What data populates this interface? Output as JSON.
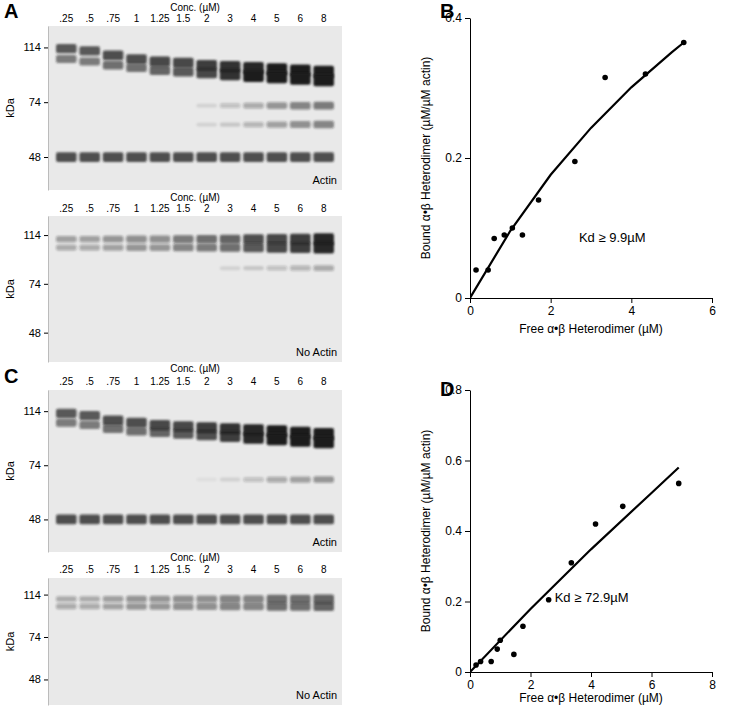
{
  "chart_data": [
    {
      "type": "gel",
      "panel": "A",
      "x_label": "Conc. (µM)",
      "y_label": "kDa",
      "annotation": "Actin",
      "categories": [
        ".25",
        ".5",
        ".75",
        "1",
        "1.25",
        "1.5",
        "2",
        "3",
        "4",
        "5",
        "6",
        "8"
      ],
      "log": "y",
      "ylim": [
        37,
        135
      ],
      "yticks": [
        114,
        74,
        48
      ],
      "color": "#1e1e1e",
      "bands": [
        {
          "kda": [
            113,
            111,
            107,
            104,
            102,
            101,
            99,
            98,
            97,
            96,
            95,
            94
          ],
          "values": [
            0.7,
            0.7,
            0.75,
            0.75,
            0.8,
            0.8,
            0.85,
            0.9,
            0.95,
            1,
            1,
            1
          ]
        },
        {
          "kda": [
            104,
            102,
            99,
            97,
            95,
            94,
            93,
            92,
            91,
            90,
            89,
            88
          ],
          "values": [
            0.55,
            0.55,
            0.6,
            0.6,
            0.65,
            0.7,
            0.8,
            0.9,
            1,
            1,
            1,
            1
          ]
        },
        {
          "kda": [
            72,
            72,
            72,
            72,
            72,
            72,
            72,
            72,
            72,
            72,
            72,
            72
          ],
          "values": [
            0,
            0,
            0,
            0,
            0,
            0,
            0.1,
            0.2,
            0.3,
            0.4,
            0.5,
            0.55
          ]
        },
        {
          "kda": [
            62,
            62,
            62,
            62,
            62,
            62,
            62,
            62,
            62,
            62,
            62,
            62
          ],
          "values": [
            0,
            0,
            0,
            0,
            0,
            0,
            0.1,
            0.15,
            0.25,
            0.35,
            0.45,
            0.5
          ]
        },
        {
          "kda": [
            48,
            48,
            48,
            48,
            48,
            48,
            48,
            48,
            48,
            48,
            48,
            48
          ],
          "values": [
            0.75,
            0.75,
            0.75,
            0.75,
            0.75,
            0.75,
            0.75,
            0.75,
            0.75,
            0.75,
            0.75,
            0.75
          ]
        }
      ]
    },
    {
      "type": "gel",
      "x_label": "Conc. (µM)",
      "y_label": "kDa",
      "annotation": "No Actin",
      "categories": [
        ".25",
        ".5",
        ".75",
        "1",
        "1.25",
        "1.5",
        "2",
        "3",
        "4",
        "5",
        "6",
        "8"
      ],
      "log": "y",
      "ylim": [
        37,
        135
      ],
      "yticks": [
        114,
        74,
        48
      ],
      "color": "#1e1e1e",
      "bands": [
        {
          "kda": [
            110,
            110,
            110,
            110,
            110,
            110,
            110,
            110,
            110,
            110,
            110,
            110
          ],
          "values": [
            0.35,
            0.35,
            0.4,
            0.45,
            0.45,
            0.55,
            0.6,
            0.65,
            0.75,
            0.8,
            0.85,
            0.95
          ]
        },
        {
          "kda": [
            102,
            102,
            102,
            102,
            102,
            102,
            102,
            102,
            102,
            102,
            102,
            102
          ],
          "values": [
            0.3,
            0.3,
            0.35,
            0.4,
            0.4,
            0.5,
            0.55,
            0.6,
            0.7,
            0.8,
            0.85,
            0.95
          ]
        },
        {
          "kda": [
            85,
            85,
            85,
            85,
            85,
            85,
            85,
            85,
            85,
            85,
            85,
            85
          ],
          "values": [
            0,
            0,
            0,
            0,
            0,
            0,
            0,
            0.1,
            0.15,
            0.2,
            0.25,
            0.3
          ]
        }
      ]
    },
    {
      "type": "scatter",
      "panel": "B",
      "x_label": "Free α•β Heterodimer (µM)",
      "y_label": "Bound α•β Heterodimer (µM/µM actin)",
      "annotation": "Kd ≥ 9.9µM",
      "xlim": [
        0,
        6
      ],
      "xticks": [
        0,
        2,
        4,
        6
      ],
      "ylim": [
        0,
        0.4
      ],
      "yticks": [
        0,
        0.2,
        0.4
      ],
      "series": [
        {
          "type": "scatter",
          "marker": "circle",
          "color": "#000000",
          "x": [
            0.15,
            0.45,
            0.6,
            0.85,
            1.05,
            1.3,
            1.7,
            2.6,
            3.35,
            4.35,
            5.3
          ],
          "values": [
            0.04,
            0.04,
            0.085,
            0.09,
            0.1,
            0.09,
            0.14,
            0.195,
            0.315,
            0.32,
            0.365
          ]
        },
        {
          "type": "line",
          "line_style": "solid",
          "color": "#000000",
          "x": [
            0,
            1,
            2,
            3,
            4,
            5,
            5.3
          ],
          "values": [
            0,
            0.096,
            0.176,
            0.243,
            0.301,
            0.351,
            0.365
          ]
        }
      ]
    },
    {
      "type": "gel",
      "panel": "C",
      "x_label": "Conc. (µM)",
      "y_label": "kDa",
      "annotation": "Actin",
      "categories": [
        ".25",
        ".5",
        ".75",
        "1",
        "1.25",
        "1.5",
        "2",
        "3",
        "4",
        "5",
        "6",
        "8"
      ],
      "log": "y",
      "ylim": [
        37,
        135
      ],
      "yticks": [
        114,
        74,
        48
      ],
      "color": "#1e1e1e",
      "bands": [
        {
          "kda": [
            112,
            110,
            106,
            104,
            102,
            101,
            100,
            99,
            98,
            97,
            96,
            95
          ],
          "values": [
            0.7,
            0.7,
            0.75,
            0.75,
            0.8,
            0.8,
            0.85,
            0.9,
            0.95,
            1,
            1,
            1
          ]
        },
        {
          "kda": [
            104,
            102,
            99,
            97,
            96,
            95,
            94,
            93,
            92,
            91,
            90,
            89
          ],
          "values": [
            0.55,
            0.55,
            0.6,
            0.6,
            0.65,
            0.7,
            0.75,
            0.85,
            0.95,
            1,
            1,
            1
          ]
        },
        {
          "kda": [
            66,
            66,
            66,
            66,
            66,
            66,
            66,
            66,
            66,
            66,
            66,
            66
          ],
          "values": [
            0,
            0,
            0,
            0,
            0,
            0,
            0.05,
            0.1,
            0.2,
            0.3,
            0.35,
            0.4
          ]
        },
        {
          "kda": [
            48,
            48,
            48,
            48,
            48,
            48,
            48,
            48,
            48,
            48,
            48,
            48
          ],
          "values": [
            0.75,
            0.75,
            0.75,
            0.75,
            0.75,
            0.75,
            0.75,
            0.75,
            0.75,
            0.75,
            0.75,
            0.75
          ]
        }
      ]
    },
    {
      "type": "gel",
      "x_label": "Conc. (µM)",
      "y_label": "kDa",
      "annotation": "No Actin",
      "categories": [
        ".25",
        ".5",
        ".75",
        "1",
        "1.25",
        "1.5",
        "2",
        "3",
        "4",
        "5",
        "6",
        "8"
      ],
      "log": "y",
      "ylim": [
        37,
        135
      ],
      "yticks": [
        114,
        74,
        48
      ],
      "color": "#1e1e1e",
      "bands": [
        {
          "kda": [
            109,
            109,
            109,
            109,
            109,
            109,
            109,
            109,
            109,
            109,
            109,
            109
          ],
          "values": [
            0.3,
            0.3,
            0.35,
            0.4,
            0.4,
            0.45,
            0.45,
            0.5,
            0.5,
            0.6,
            0.6,
            0.65
          ]
        },
        {
          "kda": [
            101,
            101,
            101,
            101,
            101,
            101,
            101,
            101,
            101,
            101,
            101,
            101
          ],
          "values": [
            0.3,
            0.3,
            0.35,
            0.4,
            0.4,
            0.45,
            0.45,
            0.5,
            0.5,
            0.6,
            0.6,
            0.65
          ]
        }
      ]
    },
    {
      "type": "scatter",
      "panel": "D",
      "x_label": "Free α•β Heterodimer (µM)",
      "y_label": "Bound α•β Heterodimer (µM/µM actin)",
      "annotation": "Kd ≥ 72.9µM",
      "xlim": [
        0,
        8
      ],
      "xticks": [
        0,
        2,
        4,
        6,
        8
      ],
      "ylim": [
        0,
        0.8
      ],
      "yticks": [
        0,
        0.2,
        0.4,
        0.6,
        0.8
      ],
      "series": [
        {
          "type": "scatter",
          "marker": "circle",
          "color": "#000000",
          "x": [
            0.2,
            0.35,
            0.7,
            0.9,
            1.0,
            1.45,
            1.75,
            2.6,
            3.35,
            4.15,
            5.05,
            6.9
          ],
          "values": [
            0.02,
            0.03,
            0.03,
            0.065,
            0.09,
            0.05,
            0.13,
            0.205,
            0.31,
            0.42,
            0.47,
            0.535
          ]
        },
        {
          "type": "line",
          "line_style": "solid",
          "color": "#000000",
          "x": [
            0,
            2,
            4,
            6,
            6.9
          ],
          "values": [
            0,
            0.179,
            0.348,
            0.508,
            0.58
          ]
        }
      ]
    }
  ]
}
